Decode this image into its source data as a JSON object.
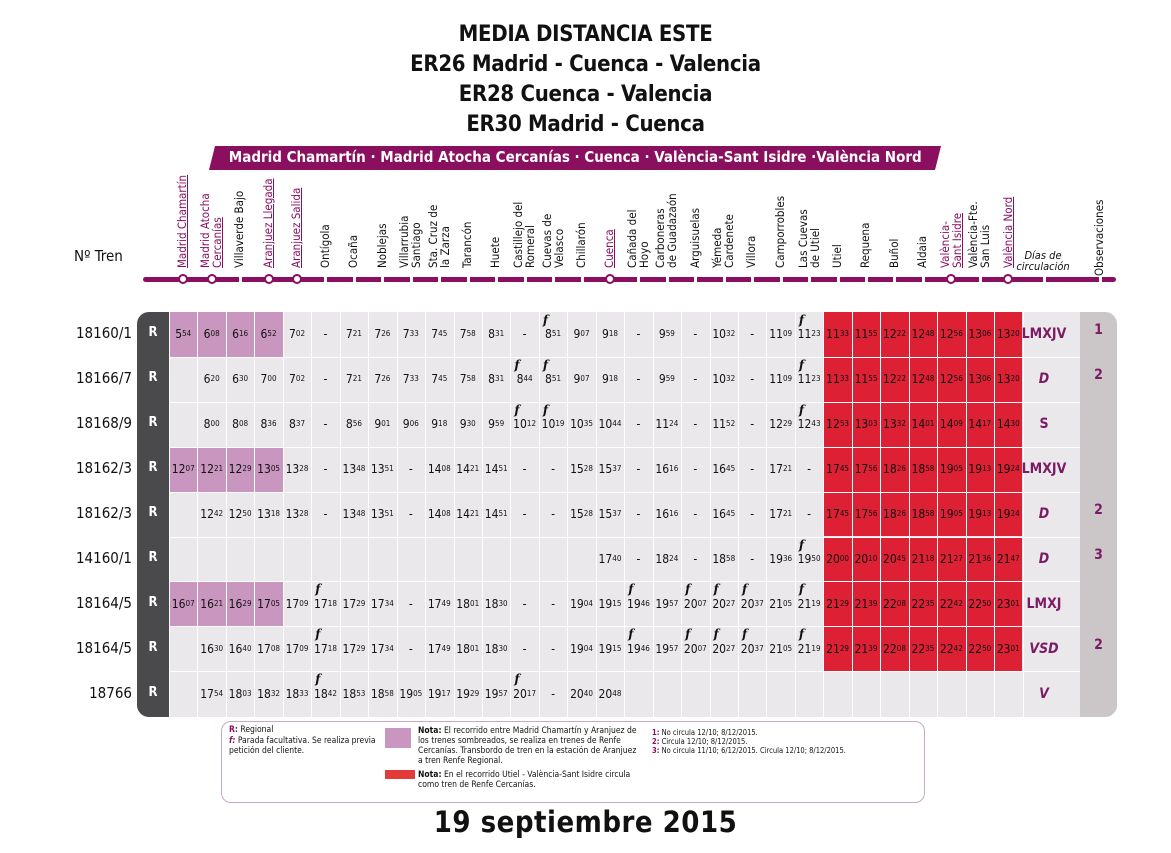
{
  "titles": [
    "MEDIA DISTANCIA ESTE",
    "ER26 Madrid - Cuenca - Valencia",
    "ER28 Cuenca - Valencia",
    "ER30 Madrid - Cuenca"
  ],
  "banner": "Madrid Chamartín · Madrid Atocha Cercanías · Cuenca · València-Sant Isidre ·València Nord",
  "ntren_label": "Nº Tren",
  "dias_header": "Días de circulación",
  "obs_header": "Observaciones",
  "stations": [
    {
      "name": "Madrid Chamartín",
      "style": "purple-under",
      "dot": true
    },
    {
      "name": "Madrid Atocha|Cercanías",
      "style": "purple-under",
      "dot": true
    },
    {
      "name": "Villaverde Bajo",
      "style": "",
      "dot": false
    },
    {
      "name": "Aranjuez Llegada",
      "style": "purple-under",
      "dot": true
    },
    {
      "name": "Aranjuez Salida",
      "style": "purple-under",
      "dot": true
    },
    {
      "name": "Ontígola",
      "style": "",
      "dot": false
    },
    {
      "name": "Ocaña",
      "style": "",
      "dot": false
    },
    {
      "name": "Noblejas",
      "style": "",
      "dot": false
    },
    {
      "name": "Villarrubia|Santiago",
      "style": "",
      "dot": false
    },
    {
      "name": "Sta. Cruz de|la Zarza",
      "style": "",
      "dot": false
    },
    {
      "name": "Tarancón",
      "style": "",
      "dot": false
    },
    {
      "name": "Huete",
      "style": "",
      "dot": false
    },
    {
      "name": "Castillejo del|Romeral",
      "style": "",
      "dot": false
    },
    {
      "name": "Cuevas de|Velasco",
      "style": "",
      "dot": false
    },
    {
      "name": "Chillarón",
      "style": "",
      "dot": false
    },
    {
      "name": "Cuenca",
      "style": "purple-under",
      "dot": true
    },
    {
      "name": "Cañada del|Hoyo",
      "style": "",
      "dot": false
    },
    {
      "name": "Carboneras|de Guadazaón",
      "style": "",
      "dot": false
    },
    {
      "name": "Arguisuelas",
      "style": "",
      "dot": false
    },
    {
      "name": "Yémeda|Cardenete",
      "style": "",
      "dot": false
    },
    {
      "name": "Villora",
      "style": "",
      "dot": false
    },
    {
      "name": "Camporrobles",
      "style": "",
      "dot": false
    },
    {
      "name": "Las Cuevas|de Utiel",
      "style": "",
      "dot": false
    },
    {
      "name": "Utiel",
      "style": "",
      "dot": false
    },
    {
      "name": "Requena",
      "style": "",
      "dot": false
    },
    {
      "name": "Buñol",
      "style": "",
      "dot": false
    },
    {
      "name": "Aldaia",
      "style": "",
      "dot": false
    },
    {
      "name": "València-|Sant Isidre",
      "style": "purple-under",
      "dot": true
    },
    {
      "name": "València-Fte.|San Luis",
      "style": "",
      "dot": false
    },
    {
      "name": "València Nord",
      "style": "purple-under",
      "dot": true
    }
  ],
  "trains": [
    {
      "num": "18160/1",
      "type": "R",
      "dias": "LMXJV",
      "dias_italic": false,
      "obs": "1",
      "times": [
        "5:54",
        "6:08",
        "6:16",
        "6:52",
        "7:02",
        "-",
        "7:21",
        "7:26",
        "7:33",
        "7:45",
        "7:58",
        "8:31",
        "-",
        "f8:51",
        "9:07",
        "9:18",
        "-",
        "9:59",
        "-",
        "10:32",
        "-",
        "11:09",
        "f11:23",
        "11:33",
        "11:55",
        "12:22",
        "12:48",
        "12:56",
        "13:06",
        "13:20"
      ]
    },
    {
      "num": "18166/7",
      "type": "R",
      "dias": "D",
      "dias_italic": true,
      "obs": "2",
      "times": [
        "",
        "6:20",
        "6:30",
        "7:00",
        "7:02",
        "-",
        "7:21",
        "7:26",
        "7:33",
        "7:45",
        "7:58",
        "8:31",
        "f8:44",
        "f8:51",
        "9:07",
        "9:18",
        "-",
        "9:59",
        "-",
        "10:32",
        "-",
        "11:09",
        "f11:23",
        "11:33",
        "11:55",
        "12:22",
        "12:48",
        "12:56",
        "13:06",
        "13:20"
      ]
    },
    {
      "num": "18168/9",
      "type": "R",
      "dias": "S",
      "dias_italic": false,
      "obs": "",
      "times": [
        "",
        "8:00",
        "8:08",
        "8:36",
        "8:37",
        "-",
        "8:56",
        "9:01",
        "9:06",
        "9:18",
        "9:30",
        "9:59",
        "f10:12",
        "f10:19",
        "10:35",
        "10:44",
        "-",
        "11:24",
        "-",
        "11:52",
        "-",
        "12:29",
        "f12:43",
        "12:53",
        "13:03",
        "13:32",
        "14:01",
        "14:09",
        "14:17",
        "14:30"
      ]
    },
    {
      "num": "18162/3",
      "type": "R",
      "dias": "LMXJV",
      "dias_italic": false,
      "obs": "",
      "times": [
        "12:07",
        "12:21",
        "12:29",
        "13:05",
        "13:28",
        "-",
        "13:48",
        "13:51",
        "-",
        "14:08",
        "14:21",
        "14:51",
        "-",
        "-",
        "15:28",
        "15:37",
        "-",
        "16:16",
        "-",
        "16:45",
        "-",
        "17:21",
        "-",
        "17:45",
        "17:56",
        "18:26",
        "18:58",
        "19:05",
        "19:13",
        "19:24"
      ]
    },
    {
      "num": "18162/3",
      "type": "R",
      "dias": "D",
      "dias_italic": true,
      "obs": "2",
      "times": [
        "",
        "12:42",
        "12:50",
        "13:18",
        "13:28",
        "-",
        "13:48",
        "13:51",
        "-",
        "14:08",
        "14:21",
        "14:51",
        "-",
        "-",
        "15:28",
        "15:37",
        "-",
        "16:16",
        "-",
        "16:45",
        "-",
        "17:21",
        "-",
        "17:45",
        "17:56",
        "18:26",
        "18:58",
        "19:05",
        "19:13",
        "19:24"
      ]
    },
    {
      "num": "14160/1",
      "type": "R",
      "dias": "D",
      "dias_italic": true,
      "obs": "3",
      "times": [
        "",
        "",
        "",
        "",
        "",
        "",
        "",
        "",
        "",
        "",
        "",
        "",
        "",
        "",
        "",
        "17:40",
        "-",
        "18:24",
        "-",
        "18:58",
        "-",
        "19:36",
        "f19:50",
        "20:00",
        "20:10",
        "20:45",
        "21:18",
        "21:27",
        "21:36",
        "21:47"
      ]
    },
    {
      "num": "18164/5",
      "type": "R",
      "dias": "LMXJ",
      "dias_italic": false,
      "obs": "",
      "times": [
        "16:07",
        "16:21",
        "16:29",
        "17:05",
        "17:09",
        "f17:18",
        "17:29",
        "17:34",
        "-",
        "17:49",
        "18:01",
        "18:30",
        "-",
        "-",
        "19:04",
        "19:15",
        "f19:46",
        "19:57",
        "f20:07",
        "f20:27",
        "f20:37",
        "21:05",
        "f21:19",
        "21:29",
        "21:39",
        "22:08",
        "22:35",
        "22:42",
        "22:50",
        "23:01"
      ]
    },
    {
      "num": "18164/5",
      "type": "R",
      "dias": "VSD",
      "dias_italic": true,
      "obs": "2",
      "times": [
        "",
        "16:30",
        "16:40",
        "17:08",
        "17:09",
        "f17:18",
        "17:29",
        "17:34",
        "-",
        "17:49",
        "18:01",
        "18:30",
        "-",
        "-",
        "19:04",
        "19:15",
        "f19:46",
        "19:57",
        "f20:07",
        "f20:27",
        "f20:37",
        "21:05",
        "f21:19",
        "21:29",
        "21:39",
        "22:08",
        "22:35",
        "22:42",
        "22:50",
        "23:01"
      ]
    },
    {
      "num": "18766",
      "type": "R",
      "dias": "V",
      "dias_italic": true,
      "obs": "",
      "times": [
        "",
        "17:54",
        "18:03",
        "18:32",
        "18:33",
        "f18:42",
        "18:53",
        "18:58",
        "19:05",
        "19:17",
        "19:29",
        "19:57",
        "f20:17",
        "-",
        "20:40",
        "20:48",
        "",
        "",
        "",
        "",
        "",
        "",
        "",
        "",
        "",
        "",
        "",
        "",
        "",
        ""
      ]
    }
  ],
  "pink_cells": [
    [
      0,
      0
    ],
    [
      0,
      1
    ],
    [
      0,
      2
    ],
    [
      0,
      3
    ],
    [
      3,
      0
    ],
    [
      3,
      1
    ],
    [
      3,
      2
    ],
    [
      3,
      3
    ],
    [
      6,
      0
    ],
    [
      6,
      1
    ],
    [
      6,
      2
    ],
    [
      6,
      3
    ]
  ],
  "red_rows": [
    0,
    1,
    2,
    3,
    4,
    5,
    6,
    7
  ],
  "red_cols_from": 23,
  "legend": {
    "r_label": "R:",
    "r_text": "Regional",
    "f_label": "f:",
    "f_text": "Parada facultativa. Se realiza previa petición del cliente.",
    "nota_pink_label": "Nota:",
    "nota_pink_text": "El recorrido entre Madrid Chamartín y Aranjuez de los trenes sombreados, se realiza en trenes de Renfe Cercanías. Transbordo de tren en la estación de Aranjuez a tren Renfe Regional.",
    "nota_red_label": "Nota:",
    "nota_red_text": "En el recorrido Utiel - València-Sant Isidre circula como tren de Renfe Cercanías.",
    "note1_label": "1:",
    "note1_text": "No circula 12/10; 8/12/2015.",
    "note2_label": "2:",
    "note2_text": "Circula 12/10; 8/12/2015.",
    "note3_label": "3:",
    "note3_text": "No circula 11/10; 6/12/2015. Circula 12/10; 8/12/2015."
  },
  "footer": "19 septiembre 2015",
  "colors": {
    "purple": "#8a0f5e",
    "pink": "#c996bf",
    "red": "#de2034",
    "dark": "#4a4a4d",
    "panel": "#eae8ea",
    "obs_bg": "#cbc6c8"
  }
}
